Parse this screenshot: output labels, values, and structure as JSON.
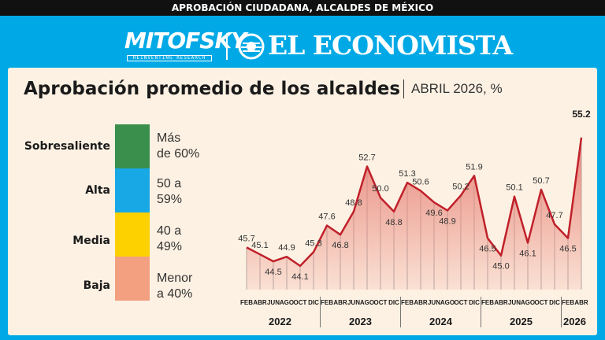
{
  "header": {
    "top_label": "APROBACIÓN CIUDADANA, ALCALDES DE MÉXICO",
    "brand_left": "MITOFSKY",
    "brand_left_tagline": "REINVENTING RESEARCH",
    "brand_right": "EL ECONOMISTA"
  },
  "legend": [
    {
      "name": "Sobresaliente",
      "range_1": "Más",
      "range_2": "de 60%",
      "color": "#3a8f4c"
    },
    {
      "name": "Alta",
      "range_1": "50 a",
      "range_2": "59%",
      "color": "#19a8e6"
    },
    {
      "name": "Media",
      "range_1": "40 a",
      "range_2": "49%",
      "color": "#fdd000"
    },
    {
      "name": "Baja",
      "range_1": "Menor",
      "range_2": "a 40%",
      "color": "#f2a080"
    }
  ],
  "chart_data": {
    "type": "area",
    "title": "Aprobación promedio de los alcaldes",
    "subtitle": "ABRIL 2026, %",
    "x": [
      "FEB 2022",
      "ABR 2022",
      "JUN 2022",
      "AGO 2022",
      "OCT 2022",
      "DIC 2022",
      "FEB 2023",
      "ABR 2023",
      "JUN 2023",
      "AGO 2023",
      "OCT 2023",
      "DIC 2023",
      "FEB 2024",
      "ABR 2024",
      "JUN 2024",
      "AGO 2024",
      "OCT 2024",
      "DIC 2024",
      "FEB 2025",
      "ABR 2025",
      "JUN 2025",
      "AGO 2025",
      "OCT 2025",
      "DIC 2025",
      "FEB 2026",
      "ABR 2026"
    ],
    "values": [
      45.7,
      45.1,
      44.5,
      44.9,
      44.1,
      45.3,
      47.6,
      46.8,
      48.8,
      52.7,
      50.0,
      48.8,
      51.3,
      50.6,
      49.6,
      48.9,
      50.2,
      51.9,
      46.5,
      45.0,
      50.1,
      46.1,
      50.7,
      47.7,
      46.5,
      55.2
    ],
    "value_labels": [
      "45.7",
      "45.1",
      "44.5",
      "44.9",
      "44.1",
      "45.3",
      "47.6",
      "46.8",
      "48.8",
      "52.7",
      "50.0",
      "48.8",
      "51.3",
      "50.6",
      "49.6",
      "48.9",
      "50.2",
      "51.9",
      "46.5",
      "45.0",
      "50.1",
      "46.1",
      "50.7",
      "47.7",
      "46.5",
      "55.2"
    ],
    "label_above": [
      true,
      true,
      false,
      true,
      false,
      true,
      true,
      false,
      true,
      true,
      true,
      false,
      true,
      true,
      false,
      false,
      true,
      true,
      false,
      false,
      true,
      false,
      true,
      true,
      false,
      true
    ],
    "years": [
      {
        "label": "2022",
        "months": [
          "FEB",
          "ABR",
          "JUN",
          "AGO",
          "OCT",
          "DIC"
        ]
      },
      {
        "label": "2023",
        "months": [
          "FEB",
          "ABR",
          "JUN",
          "AGO",
          "OCT",
          "DIC"
        ]
      },
      {
        "label": "2024",
        "months": [
          "FEB",
          "ABR",
          "JUN",
          "AGO",
          "OCT",
          "DIC"
        ]
      },
      {
        "label": "2025",
        "months": [
          "FEB",
          "ABR",
          "JUN",
          "AGO",
          "OCT",
          "DIC"
        ]
      },
      {
        "label": "2026",
        "months": [
          "FEB",
          "ABR"
        ]
      }
    ],
    "line_color": "#c0202a",
    "area_color": "#e8877c",
    "grid": false
  }
}
